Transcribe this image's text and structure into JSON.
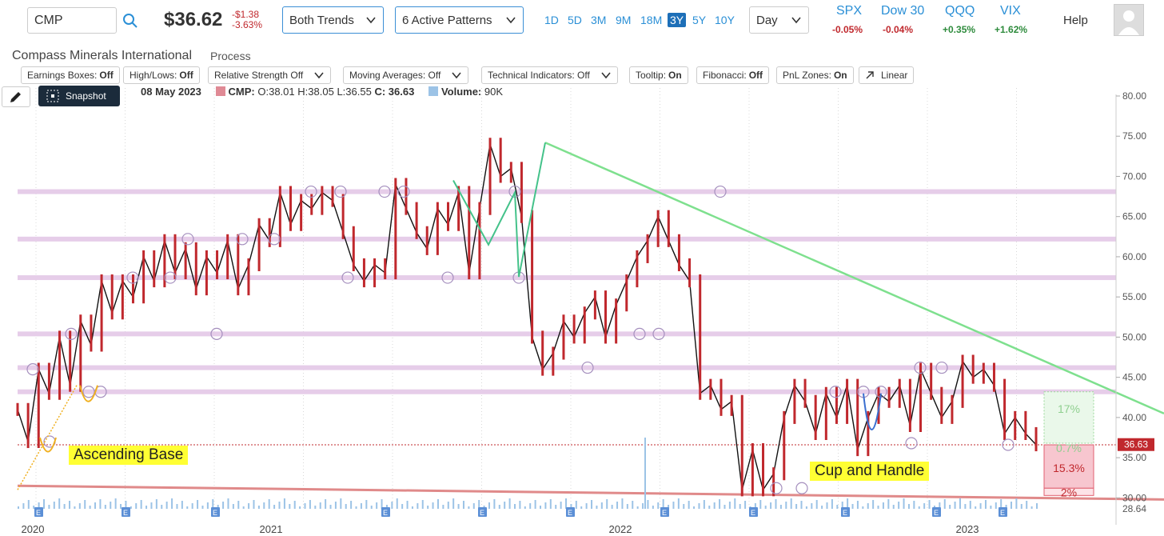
{
  "header": {
    "ticker": "CMP",
    "price": "$36.62",
    "change": "-$1.38",
    "change_pct": "-3.63%",
    "trend_dropdown": "Both Trends",
    "patterns_dropdown": "6 Active Patterns",
    "ranges": [
      "1D",
      "5D",
      "3M",
      "9M",
      "18M",
      "3Y",
      "5Y",
      "10Y"
    ],
    "active_range": "3Y",
    "interval": "Day",
    "help": "Help"
  },
  "indices": [
    {
      "name": "SPX",
      "value": "-0.05%",
      "dir": "neg"
    },
    {
      "name": "Dow 30",
      "value": "-0.04%",
      "dir": "neg"
    },
    {
      "name": "QQQ",
      "value": "+0.35%",
      "dir": "pos"
    },
    {
      "name": "VIX",
      "value": "+1.62%",
      "dir": "pos"
    }
  ],
  "company": {
    "name": "Compass Minerals International",
    "process": "Process"
  },
  "toolbar": [
    {
      "label": "Earnings Boxes:",
      "value": "Off"
    },
    {
      "label": "High/Lows:",
      "value": "Off"
    },
    {
      "label": "Relative Strength Off",
      "value": ""
    },
    {
      "label": "Moving Averages: Off",
      "value": ""
    },
    {
      "label": "Technical Indicators: Off",
      "value": ""
    },
    {
      "label": "Tooltip:",
      "value": "On"
    },
    {
      "label": "Fibonacci:",
      "value": "Off"
    },
    {
      "label": "PnL Zones:",
      "value": "On"
    },
    {
      "label": "Linear",
      "value": ""
    }
  ],
  "snapshot_label": "Snapshot",
  "ohlc": {
    "date": "08 May 2023",
    "symbol": "CMP:",
    "o": "O:38.01",
    "h": "H:38.05",
    "l": "L:36.55",
    "c": "C: 36.63",
    "volume_label": "Volume:",
    "volume": "90K"
  },
  "colors": {
    "candle": "#c0282d",
    "line": "#111111",
    "trendline": "#7ee08e",
    "resistance": "#e6cde9",
    "support_line": "#e08a8a",
    "accent": "#1d6fb8",
    "volume": "#9cc3e6"
  },
  "chart_data": {
    "type": "line",
    "title": "",
    "x_labels": [
      "2020",
      "2021",
      "2022",
      "2023"
    ],
    "y_ticks": [
      "80.00",
      "75.00",
      "70.00",
      "65.00",
      "60.00",
      "55.00",
      "50.00",
      "45.00",
      "40.00",
      "35.00",
      "30.00"
    ],
    "ylim": [
      28.64,
      80
    ],
    "y_min_label": "28.64",
    "last_price_label": "36.63",
    "last_price": 36.63,
    "grid": true,
    "earnings_marker": "E",
    "series": [
      {
        "values": [
          41,
          37,
          46,
          43,
          50,
          44,
          52,
          49,
          57,
          53,
          57,
          55,
          60,
          57,
          62,
          58,
          61,
          56,
          60,
          58,
          62,
          56,
          59,
          64,
          62,
          68,
          64,
          67,
          66,
          68,
          67,
          63,
          59,
          57,
          59,
          58,
          69,
          66,
          63,
          61,
          66,
          64,
          68,
          58,
          66,
          74,
          70,
          71,
          65,
          50,
          46,
          48,
          52,
          50,
          53,
          55,
          50,
          54,
          57,
          60,
          62,
          65,
          62,
          59,
          57,
          43,
          44,
          41,
          42,
          31,
          36,
          31,
          33,
          40,
          44,
          42,
          38,
          43,
          40,
          44,
          36,
          40,
          43,
          42,
          44,
          39,
          46,
          43,
          40,
          42,
          47,
          45,
          46,
          44,
          38,
          40,
          38,
          36.6
        ]
      }
    ],
    "resistance_levels": [
      68.1,
      62.2,
      57.4,
      50.4,
      46.2,
      43.2,
      36.6
    ],
    "pnl_zones": [
      {
        "label": "17%",
        "kind": "profit"
      },
      {
        "label": "0.7%",
        "kind": "neutral"
      },
      {
        "label": "15.3%",
        "kind": "loss"
      },
      {
        "label": "2%",
        "kind": "loss"
      }
    ],
    "patterns": [
      "Ascending Base",
      "Cup and Handle"
    ]
  }
}
